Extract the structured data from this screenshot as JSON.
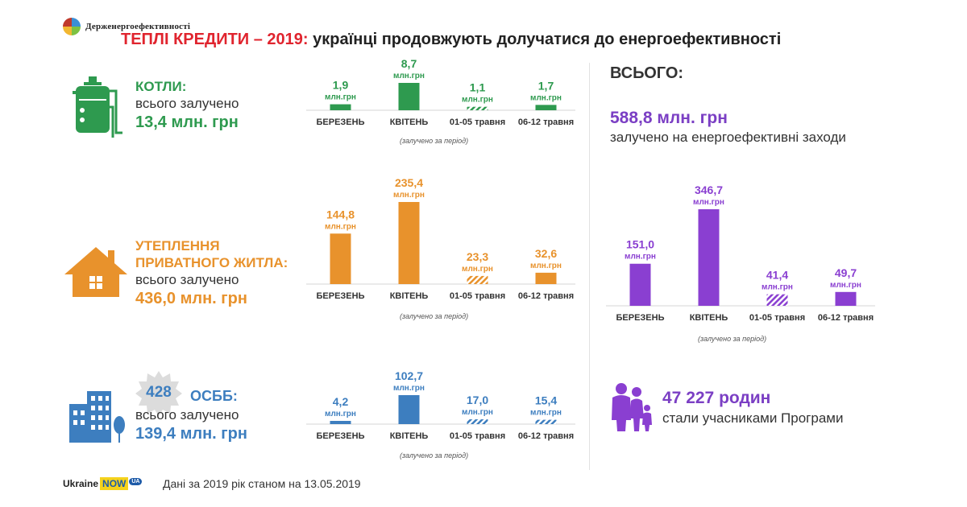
{
  "header": {
    "logo_text": "Держенергоефективності",
    "title_highlight": "ТЕПЛІ КРЕДИТИ – 2019:",
    "title_rest": " українці продовжують долучатися до енергоефективності"
  },
  "categories": {
    "boilers": {
      "title": "КОТЛИ:",
      "sub": "всього залучено",
      "total": "13,4 млн. грн",
      "note": "(залучено  за період)"
    },
    "insulation": {
      "title_line1": "УТЕПЛЕННЯ",
      "title_line2": "ПРИВАТНОГО ЖИТЛА:",
      "sub": "всього залучено",
      "total": "436,0 млн. грн",
      "note": "(залучено  за період)"
    },
    "osbb": {
      "count": "428",
      "title": "ОСББ:",
      "sub": "всього залучено",
      "total": "139,4 млн. грн",
      "note": "(залучено  за період)"
    }
  },
  "summary": {
    "label": "ВСЬОГО:",
    "value": "588,8 млн. грн",
    "sub": "залучено на енергоефективні заходи",
    "note": "(залучено  за період)"
  },
  "families": {
    "value": "47 227 родин",
    "sub": "стали учасниками Програми"
  },
  "footer": {
    "brand_ukraine": "Ukraine",
    "brand_now": "NOW",
    "brand_ua": "UA",
    "text": "Дані за 2019 рік станом на 13.05.2019"
  },
  "colors": {
    "green": "#2e9a4f",
    "orange": "#e8922c",
    "blue": "#3d7ebf",
    "purple": "#8a3fd1",
    "red": "#e0242e"
  },
  "icons": {
    "boilers": "boiler-icon",
    "insulation": "house-icon",
    "osbb": "building-icon",
    "families": "family-icon",
    "badge": "starburst-icon"
  },
  "chart_data": [
    {
      "type": "bar",
      "title": "КОТЛИ",
      "categories": [
        "БЕРЕЗЕНЬ",
        "КВІТЕНЬ",
        "01-05 травня",
        "06-12 травня"
      ],
      "values": [
        1.9,
        8.7,
        1.1,
        1.7
      ],
      "value_labels": [
        "1,9",
        "8,7",
        "1,1",
        "1,7"
      ],
      "unit": "млн.грн",
      "hatched": [
        false,
        false,
        true,
        false
      ],
      "color": "#2e9a4f"
    },
    {
      "type": "bar",
      "title": "УТЕПЛЕННЯ ПРИВАТНОГО ЖИТЛА",
      "categories": [
        "БЕРЕЗЕНЬ",
        "КВІТЕНЬ",
        "01-05 травня",
        "06-12 травня"
      ],
      "values": [
        144.8,
        235.4,
        23.3,
        32.6
      ],
      "value_labels": [
        "144,8",
        "235,4",
        "23,3",
        "32,6"
      ],
      "unit": "млн.грн",
      "hatched": [
        false,
        false,
        true,
        false
      ],
      "color": "#e8922c"
    },
    {
      "type": "bar",
      "title": "ОСББ",
      "categories": [
        "БЕРЕЗЕНЬ",
        "КВІТЕНЬ",
        "01-05 травня",
        "06-12 травня"
      ],
      "values": [
        4.2,
        102.7,
        17.0,
        15.4
      ],
      "value_labels": [
        "4,2",
        "102,7",
        "17,0",
        "15,4"
      ],
      "unit": "млн.грн",
      "hatched": [
        false,
        false,
        true,
        true
      ],
      "color": "#3d7ebf"
    },
    {
      "type": "bar",
      "title": "ВСЬОГО",
      "categories": [
        "БЕРЕЗЕНЬ",
        "КВІТЕНЬ",
        "01-05 травня",
        "06-12 травня"
      ],
      "values": [
        151.0,
        346.7,
        41.4,
        49.7
      ],
      "value_labels": [
        "151,0",
        "346,7",
        "41,4",
        "49,7"
      ],
      "unit": "млн.грн",
      "hatched": [
        false,
        false,
        true,
        false
      ],
      "color": "#8a3fd1"
    }
  ]
}
